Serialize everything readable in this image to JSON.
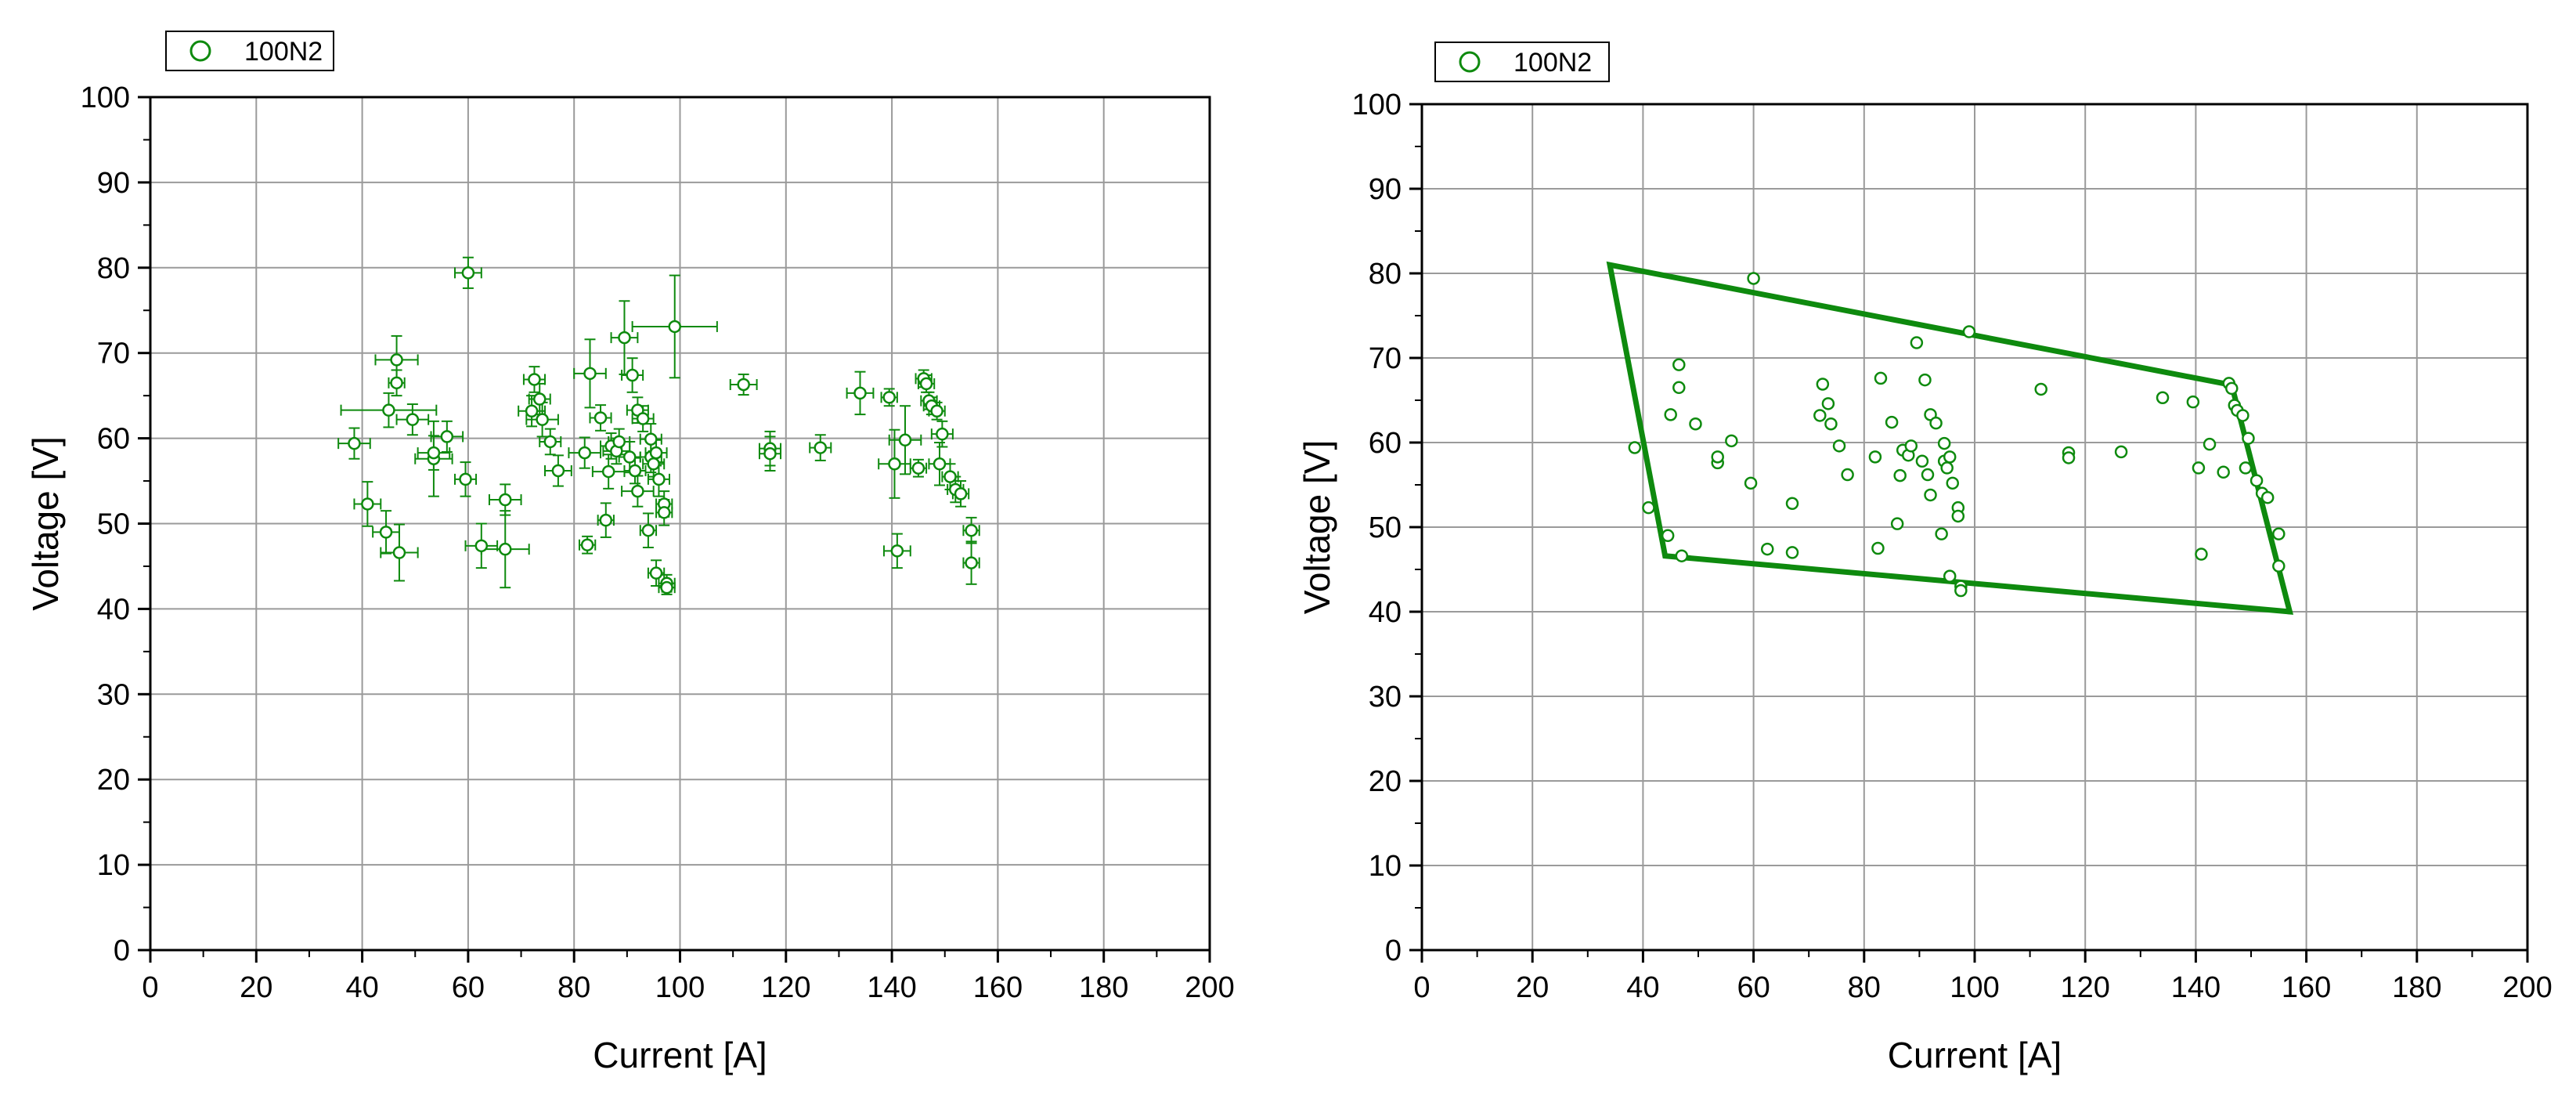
{
  "color": "#0e8a0e",
  "chart_data": [
    {
      "type": "scatter",
      "xlabel": "Current [A]",
      "ylabel": "Voltage [V]",
      "xlim": [
        0,
        200
      ],
      "ylim": [
        0,
        100
      ],
      "xticks": [
        "0",
        "20",
        "40",
        "60",
        "80",
        "100",
        "120",
        "140",
        "160",
        "180",
        "200"
      ],
      "yticks": [
        "0",
        "10",
        "20",
        "30",
        "40",
        "50",
        "60",
        "70",
        "80",
        "90",
        "100"
      ],
      "grid": true,
      "legend": {
        "label": "100N2",
        "marker": "open-circle",
        "position": "top-left"
      },
      "error_bars": true,
      "series": [
        {
          "name": "100N2",
          "points": [
            [
              38.5,
              59.4,
              3.0,
              1.8
            ],
            [
              41,
              52.3,
              2.5,
              2.6
            ],
            [
              44.5,
              49,
              2.5,
              2.5
            ],
            [
              45,
              63.3,
              9.0,
              2.0
            ],
            [
              46.5,
              66.5,
              1.5,
              1.5
            ],
            [
              46.5,
              69.2,
              4.0,
              2.8
            ],
            [
              47,
              46.6,
              3.5,
              3.3
            ],
            [
              49.5,
              62.2,
              3.0,
              1.8
            ],
            [
              53.5,
              57.6,
              3.5,
              4.4
            ],
            [
              53.5,
              58.3,
              3.0,
              2.0
            ],
            [
              56,
              60.2,
              3.0,
              1.8
            ],
            [
              59.5,
              55.2,
              2.0,
              2.0
            ],
            [
              60,
              79.4,
              2.5,
              1.8
            ],
            [
              62.5,
              47.4,
              3.0,
              2.6
            ],
            [
              67,
              52.8,
              3.0,
              1.8
            ],
            [
              67,
              47,
              4.5,
              4.5
            ],
            [
              72,
              63.2,
              2.5,
              1.8
            ],
            [
              72.5,
              66.9,
              2.0,
              1.5
            ],
            [
              73.5,
              64.6,
              2.0,
              1.8
            ],
            [
              74,
              62.2,
              3.0,
              2.0
            ],
            [
              75.5,
              59.6,
              2.0,
              1.5
            ],
            [
              77,
              56.2,
              2.5,
              1.8
            ],
            [
              82,
              58.3,
              3.0,
              1.8
            ],
            [
              82.5,
              47.5,
              1.5,
              1.0
            ],
            [
              83,
              67.6,
              3.0,
              4.0
            ],
            [
              85,
              62.4,
              2.0,
              1.5
            ],
            [
              86,
              50.4,
              1.5,
              2.0
            ],
            [
              86.5,
              56.1,
              3.0,
              2.0
            ],
            [
              87,
              59.1,
              2.0,
              1.5
            ],
            [
              88,
              58.5,
              2.5,
              1.5
            ],
            [
              88.5,
              59.6,
              2.0,
              1.5
            ],
            [
              89.5,
              71.8,
              2.5,
              4.3
            ],
            [
              90.5,
              57.8,
              2.0,
              1.8
            ],
            [
              91,
              67.4,
              2.0,
              2.0
            ],
            [
              91.5,
              56.2,
              2.0,
              1.5
            ],
            [
              92,
              53.8,
              3.0,
              1.8
            ],
            [
              92,
              63.3,
              2.0,
              1.5
            ],
            [
              93,
              62.3,
              2.0,
              1.5
            ],
            [
              94,
              49.2,
              1.5,
              2.0
            ],
            [
              94.5,
              57.8,
              2.0,
              1.8
            ],
            [
              94.5,
              59.9,
              2.0,
              1.8
            ],
            [
              95,
              57,
              2.0,
              1.5
            ],
            [
              95.5,
              58.3,
              2.0,
              1.5
            ],
            [
              95.5,
              44.2,
              1.5,
              1.5
            ],
            [
              96,
              55.2,
              2.0,
              2.0
            ],
            [
              97,
              52.3,
              1.5,
              1.5
            ],
            [
              97,
              51.3,
              1.5,
              1.5
            ],
            [
              97.5,
              43,
              1.5,
              1.0
            ],
            [
              97.5,
              42.5,
              1.5,
              0.8
            ],
            [
              99,
              73.1,
              8.0,
              6.0
            ],
            [
              112,
              66.3,
              2.5,
              1.2
            ],
            [
              117,
              58.8,
              2.0,
              2.0
            ],
            [
              117,
              58.2,
              2.0,
              2.0
            ],
            [
              126.5,
              58.9,
              2.0,
              1.5
            ],
            [
              134,
              65.3,
              2.5,
              2.5
            ],
            [
              139.5,
              64.8,
              1.5,
              1.0
            ],
            [
              140.5,
              57,
              3.0,
              4.0
            ],
            [
              141,
              46.8,
              2.5,
              2.0
            ],
            [
              142.5,
              59.8,
              3.0,
              4.0
            ],
            [
              145,
              56.5,
              1.5,
              1.0
            ],
            [
              146,
              67,
              1.5,
              1.0
            ],
            [
              146.5,
              66.4,
              1.5,
              1.0
            ],
            [
              147,
              64.4,
              1.5,
              1.0
            ],
            [
              147.5,
              63.8,
              1.5,
              1.0
            ],
            [
              148.5,
              63.2,
              1.5,
              1.0
            ],
            [
              149,
              57,
              2.0,
              2.5
            ],
            [
              149.5,
              60.5,
              2.0,
              1.5
            ],
            [
              151,
              55.5,
              1.5,
              1.5
            ],
            [
              152,
              54,
              1.5,
              1.5
            ],
            [
              153,
              53.5,
              1.5,
              1.5
            ],
            [
              155,
              49.2,
              1.5,
              1.5
            ],
            [
              155,
              45.4,
              1.5,
              2.5
            ]
          ]
        }
      ]
    },
    {
      "type": "scatter",
      "xlabel": "Current [A]",
      "ylabel": "Voltage [V]",
      "xlim": [
        0,
        200
      ],
      "ylim": [
        0,
        100
      ],
      "xticks": [
        "0",
        "20",
        "40",
        "60",
        "80",
        "100",
        "120",
        "140",
        "160",
        "180",
        "200"
      ],
      "yticks": [
        "0",
        "10",
        "20",
        "30",
        "40",
        "50",
        "60",
        "70",
        "80",
        "90",
        "100"
      ],
      "grid": true,
      "legend": {
        "label": "100N2",
        "marker": "open-circle",
        "position": "top-left"
      },
      "error_bars": false,
      "series": [
        {
          "name": "100N2",
          "points": [
            [
              38.5,
              59.4
            ],
            [
              41,
              52.3
            ],
            [
              44.5,
              49
            ],
            [
              45,
              63.3
            ],
            [
              46.5,
              66.5
            ],
            [
              46.5,
              69.2
            ],
            [
              47,
              46.6
            ],
            [
              49.5,
              62.2
            ],
            [
              53.5,
              57.6
            ],
            [
              53.5,
              58.3
            ],
            [
              56,
              60.2
            ],
            [
              59.5,
              55.2
            ],
            [
              60,
              79.4
            ],
            [
              62.5,
              47.4
            ],
            [
              67,
              52.8
            ],
            [
              67,
              47
            ],
            [
              72,
              63.2
            ],
            [
              72.5,
              66.9
            ],
            [
              73.5,
              64.6
            ],
            [
              74,
              62.2
            ],
            [
              75.5,
              59.6
            ],
            [
              77,
              56.2
            ],
            [
              82,
              58.3
            ],
            [
              82.5,
              47.5
            ],
            [
              83,
              67.6
            ],
            [
              85,
              62.4
            ],
            [
              86,
              50.4
            ],
            [
              86.5,
              56.1
            ],
            [
              87,
              59.1
            ],
            [
              88,
              58.5
            ],
            [
              88.5,
              59.6
            ],
            [
              89.5,
              71.8
            ],
            [
              90.5,
              57.8
            ],
            [
              91,
              67.4
            ],
            [
              91.5,
              56.2
            ],
            [
              92,
              53.8
            ],
            [
              92,
              63.3
            ],
            [
              93,
              62.3
            ],
            [
              94,
              49.2
            ],
            [
              94.5,
              57.8
            ],
            [
              94.5,
              59.9
            ],
            [
              95,
              57
            ],
            [
              95.5,
              58.3
            ],
            [
              95.5,
              44.2
            ],
            [
              96,
              55.2
            ],
            [
              97,
              52.3
            ],
            [
              97,
              51.3
            ],
            [
              97.5,
              43
            ],
            [
              97.5,
              42.5
            ],
            [
              99,
              73.1
            ],
            [
              112,
              66.3
            ],
            [
              117,
              58.8
            ],
            [
              117,
              58.2
            ],
            [
              126.5,
              58.9
            ],
            [
              134,
              65.3
            ],
            [
              139.5,
              64.8
            ],
            [
              140.5,
              57
            ],
            [
              141,
              46.8
            ],
            [
              142.5,
              59.8
            ],
            [
              145,
              56.5
            ],
            [
              146,
              67
            ],
            [
              146.5,
              66.4
            ],
            [
              147,
              64.4
            ],
            [
              147.5,
              63.8
            ],
            [
              148.5,
              63.2
            ],
            [
              149,
              57
            ],
            [
              149.5,
              60.5
            ],
            [
              151,
              55.5
            ],
            [
              152,
              54
            ],
            [
              153,
              53.5
            ],
            [
              155,
              49.2
            ],
            [
              155,
              45.4
            ]
          ]
        }
      ],
      "envelope": [
        [
          34,
          81
        ],
        [
          146.5,
          66.8
        ],
        [
          157,
          40
        ],
        [
          44,
          46.6
        ]
      ]
    }
  ]
}
